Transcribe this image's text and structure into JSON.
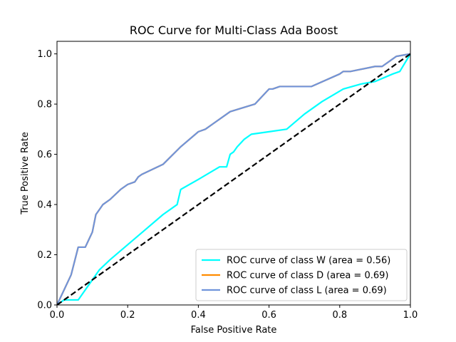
{
  "chart_data": {
    "type": "line",
    "title": "ROC Curve for Multi-Class Ada Boost",
    "xlabel": "False Positive Rate",
    "ylabel": "True Positive Rate",
    "xlim": [
      0.0,
      1.0
    ],
    "ylim": [
      0.0,
      1.05
    ],
    "xticks": [
      "0.0",
      "0.2",
      "0.4",
      "0.6",
      "0.8",
      "1.0"
    ],
    "yticks": [
      "0.0",
      "0.2",
      "0.4",
      "0.6",
      "0.8",
      "1.0"
    ],
    "grid": false,
    "legend_position": "lower-right",
    "series": [
      {
        "name": "ROC curve of class W (area = 0.56)",
        "color": "#00ffff",
        "x": [
          0.0,
          0.02,
          0.05,
          0.06,
          0.08,
          0.12,
          0.15,
          0.2,
          0.25,
          0.3,
          0.34,
          0.35,
          0.4,
          0.46,
          0.48,
          0.49,
          0.5,
          0.51,
          0.53,
          0.55,
          0.6,
          0.65,
          0.7,
          0.75,
          0.81,
          0.86,
          0.9,
          0.95,
          0.97,
          1.0
        ],
        "y": [
          0.0,
          0.02,
          0.02,
          0.02,
          0.06,
          0.14,
          0.18,
          0.24,
          0.3,
          0.36,
          0.4,
          0.46,
          0.5,
          0.55,
          0.55,
          0.6,
          0.61,
          0.63,
          0.66,
          0.68,
          0.69,
          0.7,
          0.76,
          0.81,
          0.86,
          0.88,
          0.89,
          0.92,
          0.93,
          1.0
        ]
      },
      {
        "name": "ROC curve of class D (area = 0.69)",
        "color": "#ff8c00",
        "x": [
          0.0,
          0.02,
          0.04,
          0.06,
          0.08,
          0.09,
          0.1,
          0.11,
          0.12,
          0.13,
          0.15,
          0.18,
          0.2,
          0.22,
          0.23,
          0.24,
          0.3,
          0.35,
          0.4,
          0.42,
          0.44,
          0.49,
          0.56,
          0.6,
          0.61,
          0.63,
          0.65,
          0.72,
          0.8,
          0.81,
          0.83,
          0.9,
          0.92,
          0.95,
          0.96,
          1.0
        ],
        "y": [
          0.0,
          0.06,
          0.12,
          0.23,
          0.23,
          0.26,
          0.29,
          0.36,
          0.38,
          0.4,
          0.42,
          0.46,
          0.48,
          0.49,
          0.51,
          0.52,
          0.56,
          0.63,
          0.69,
          0.7,
          0.72,
          0.77,
          0.8,
          0.86,
          0.86,
          0.87,
          0.87,
          0.87,
          0.92,
          0.93,
          0.93,
          0.95,
          0.95,
          0.98,
          0.99,
          1.0
        ]
      },
      {
        "name": "ROC curve of class L (area = 0.69)",
        "color": "#7094db",
        "x": [
          0.0,
          0.02,
          0.04,
          0.06,
          0.08,
          0.09,
          0.1,
          0.11,
          0.12,
          0.13,
          0.15,
          0.18,
          0.2,
          0.22,
          0.23,
          0.24,
          0.3,
          0.35,
          0.4,
          0.42,
          0.44,
          0.49,
          0.56,
          0.6,
          0.61,
          0.63,
          0.65,
          0.72,
          0.8,
          0.81,
          0.83,
          0.9,
          0.92,
          0.95,
          0.96,
          1.0
        ],
        "y": [
          0.0,
          0.06,
          0.12,
          0.23,
          0.23,
          0.26,
          0.29,
          0.36,
          0.38,
          0.4,
          0.42,
          0.46,
          0.48,
          0.49,
          0.51,
          0.52,
          0.56,
          0.63,
          0.69,
          0.7,
          0.72,
          0.77,
          0.8,
          0.86,
          0.86,
          0.87,
          0.87,
          0.87,
          0.92,
          0.93,
          0.93,
          0.95,
          0.95,
          0.98,
          0.99,
          1.0
        ]
      }
    ],
    "reference_line": {
      "color": "#000000",
      "style": "dashed",
      "x": [
        0.0,
        1.0
      ],
      "y": [
        0.0,
        1.0
      ]
    }
  }
}
